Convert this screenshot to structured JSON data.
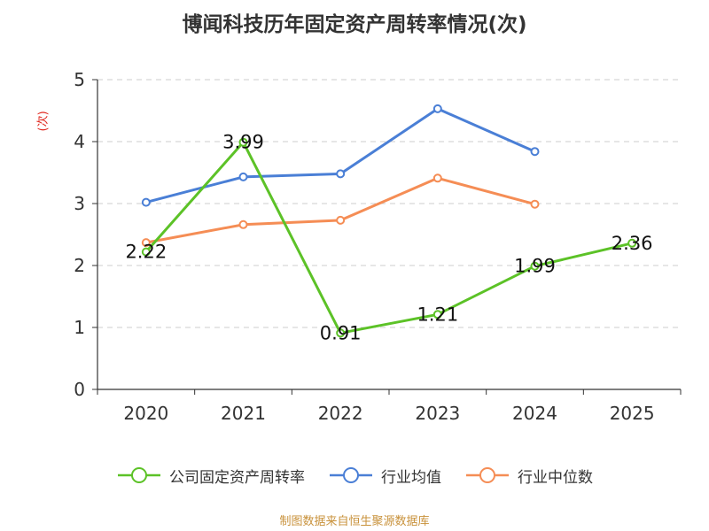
{
  "chart_data": {
    "type": "line",
    "title": "博闻科技历年固定资产周转率情况(次)",
    "ylabel": "(次)",
    "xlabel": "",
    "categories": [
      "2020",
      "2021",
      "2022",
      "2023",
      "2024",
      "2025"
    ],
    "ylim": [
      0,
      5
    ],
    "yticks": [
      0,
      1,
      2,
      3,
      4,
      5
    ],
    "grid": true,
    "legend_position": "bottom",
    "series": [
      {
        "name": "公司固定资产周转率",
        "color": "#5cc227",
        "values": [
          2.22,
          3.99,
          0.91,
          1.21,
          1.99,
          2.36
        ],
        "labels": [
          "2.22",
          "3.99",
          "0.91",
          "1.21",
          "1.99",
          "2.36"
        ]
      },
      {
        "name": "行业均值",
        "color": "#4a7fd6",
        "values": [
          3.02,
          3.43,
          3.48,
          4.53,
          3.84,
          null
        ]
      },
      {
        "name": "行业中位数",
        "color": "#f58d55",
        "values": [
          2.37,
          2.66,
          2.73,
          3.41,
          2.99,
          null
        ]
      }
    ]
  },
  "source": "制图数据来自恒生聚源数据库"
}
